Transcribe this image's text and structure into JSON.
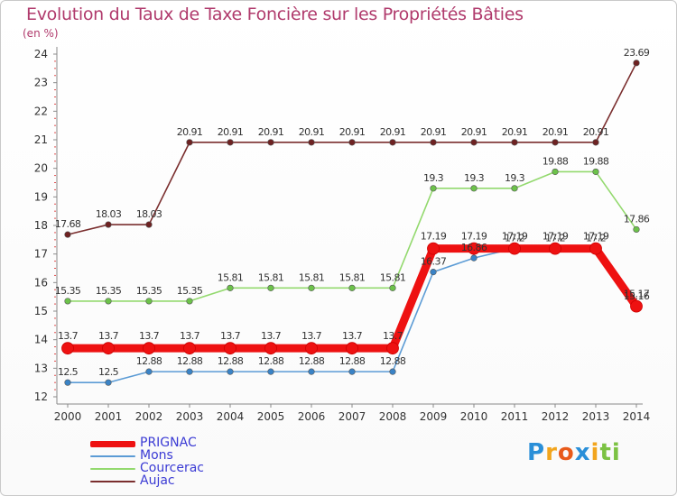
{
  "chart_data": {
    "type": "line",
    "title": "Evolution du Taux de Taxe Foncière sur les Propriétés Bâties",
    "subtitle": "(en %)",
    "xlabel": "",
    "ylabel": "(en %)",
    "ylim": [
      12,
      24
    ],
    "yticks": [
      "12",
      "13",
      "14",
      "15",
      "16",
      "17",
      "18",
      "19",
      "20",
      "21",
      "22",
      "23",
      "24"
    ],
    "categories": [
      "2000",
      "2001",
      "2002",
      "2003",
      "2004",
      "2005",
      "2006",
      "2007",
      "2008",
      "2009",
      "2010",
      "2011",
      "2012",
      "2013",
      "2014"
    ],
    "series": [
      {
        "name": "PRIGNAC",
        "color": "#ee1111",
        "point_color": "#ee1111",
        "values": [
          13.7,
          13.7,
          13.7,
          13.7,
          13.7,
          13.7,
          13.7,
          13.7,
          13.7,
          17.19,
          17.19,
          17.19,
          17.19,
          17.19,
          15.17
        ],
        "labels": [
          "13.7",
          "13.7",
          "13.7",
          "13.7",
          "13.7",
          "13.7",
          "13.7",
          "13.7",
          "13.7",
          "17.19",
          "17.19",
          "17.19",
          "17.19",
          "17.19",
          "15.17"
        ]
      },
      {
        "name": "Mons",
        "color": "#5b9bd5",
        "point_color": "#3a83c6",
        "values": [
          12.5,
          12.5,
          12.88,
          12.88,
          12.88,
          12.88,
          12.88,
          12.88,
          12.88,
          16.37,
          16.86,
          17.2,
          17.2,
          17.2,
          15.16
        ],
        "labels": [
          "12.5",
          "12.5",
          "12.88",
          "12.88",
          "12.88",
          "12.88",
          "12.88",
          "12.88",
          "12.88",
          "16.37",
          "16.86",
          "17.2",
          "17.2",
          "17.2",
          "15.16"
        ]
      },
      {
        "name": "Courcerac",
        "color": "#93d96e",
        "point_color": "#6cc24a",
        "values": [
          15.35,
          15.35,
          15.35,
          15.35,
          15.81,
          15.81,
          15.81,
          15.81,
          15.81,
          19.3,
          19.3,
          19.3,
          19.88,
          19.88,
          17.86
        ],
        "labels": [
          "15.35",
          "15.35",
          "15.35",
          "15.35",
          "15.81",
          "15.81",
          "15.81",
          "15.81",
          "15.81",
          "19.3",
          "19.3",
          "19.3",
          "19.88",
          "19.88",
          "17.86"
        ]
      },
      {
        "name": "Aujac",
        "color": "#7a2e2e",
        "point_color": "#6e2222",
        "values": [
          17.68,
          18.03,
          18.03,
          20.91,
          20.91,
          20.91,
          20.91,
          20.91,
          20.91,
          20.91,
          20.91,
          20.91,
          20.91,
          20.91,
          23.69
        ],
        "labels": [
          "17.68",
          "18.03",
          "18.03",
          "20.91",
          "20.91",
          "20.91",
          "20.91",
          "20.91",
          "20.91",
          "20.91",
          "20.91",
          "20.91",
          "20.91",
          "20.91",
          "23.69"
        ]
      }
    ],
    "legend_position": "bottom-left"
  },
  "logo": {
    "letters": [
      "P",
      "r",
      "o",
      "x",
      "i",
      "t",
      "i"
    ],
    "colors": [
      "#2a8fd8",
      "#f2a51d",
      "#e85a1a",
      "#2a8fd8",
      "#f2a51d",
      "#7cc243",
      "#7cc243"
    ]
  }
}
